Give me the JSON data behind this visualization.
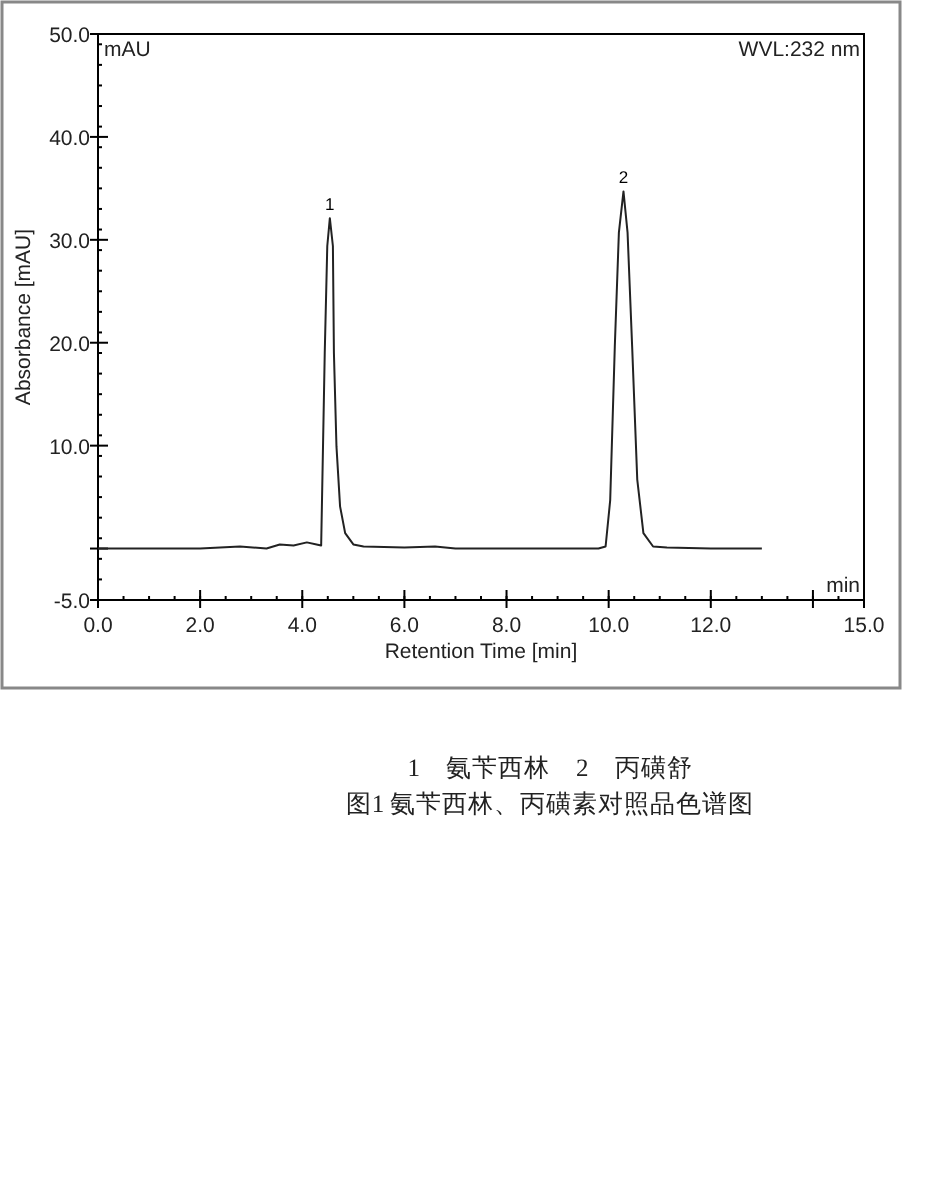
{
  "chart_data": {
    "type": "line",
    "xlabel": "Retention Time [min]",
    "ylabel": "Absorbance [mAU]",
    "xlim": [
      0,
      15
    ],
    "ylim": [
      -5,
      50
    ],
    "xticks": [
      {
        "value": 0,
        "label": "0.0"
      },
      {
        "value": 2,
        "label": "2.0"
      },
      {
        "value": 4,
        "label": "4.0"
      },
      {
        "value": 6,
        "label": "6.0"
      },
      {
        "value": 8,
        "label": "8.0"
      },
      {
        "value": 10,
        "label": "10.0"
      },
      {
        "value": 12,
        "label": "12.0"
      },
      {
        "value": 14,
        "label": null
      },
      {
        "value": 15,
        "label": "15.0"
      }
    ],
    "yticks": [
      {
        "value": -5,
        "label": "-5.0"
      },
      {
        "value": 0,
        "label": null
      },
      {
        "value": 10,
        "label": "10.0"
      },
      {
        "value": 20,
        "label": "20.0"
      },
      {
        "value": 30,
        "label": "30.0"
      },
      {
        "value": 40,
        "label": "40.0"
      },
      {
        "value": 50,
        "label": "50.0"
      }
    ],
    "grid": false,
    "marker": "none",
    "line_style": "solid",
    "series": [
      {
        "color": "#222222",
        "x": [
          0.0,
          2.0,
          2.78,
          3.3,
          3.56,
          3.83,
          4.09,
          4.28,
          4.37,
          4.44,
          4.49,
          4.54,
          4.6,
          4.62,
          4.67,
          4.74,
          4.84,
          5.0,
          5.2,
          6.0,
          6.6,
          7.0,
          9.8,
          9.94,
          10.03,
          10.12,
          10.2,
          10.29,
          10.37,
          10.46,
          10.56,
          10.68,
          10.87,
          11.14,
          12.0,
          13.0
        ],
        "values": [
          0.0,
          0.0,
          0.2,
          0.0,
          0.4,
          0.3,
          0.6,
          0.4,
          0.3,
          19.0,
          29.4,
          32.1,
          29.4,
          19.0,
          9.9,
          4.1,
          1.5,
          0.4,
          0.2,
          0.1,
          0.2,
          0.0,
          0.0,
          0.2,
          4.7,
          19.6,
          30.7,
          34.7,
          30.7,
          19.6,
          6.7,
          1.5,
          0.2,
          0.1,
          0.0,
          0.0
        ]
      }
    ],
    "annotations": [
      {
        "text": "1",
        "x": 4.54,
        "y": 32.1
      },
      {
        "text": "2",
        "x": 10.29,
        "y": 34.7
      },
      "mAU",
      "WVL:232 nm",
      "min",
      "1　氨苄西林　2　丙磺舒",
      "图1 氨苄西林、丙磺素对照品色谱图"
    ]
  }
}
